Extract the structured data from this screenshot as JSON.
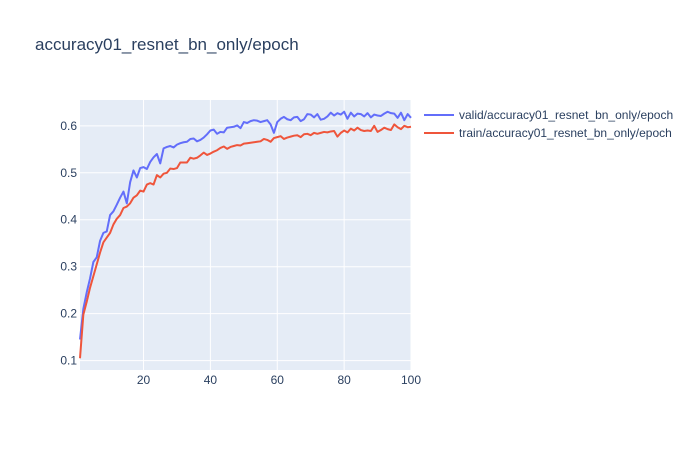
{
  "chart_data": {
    "type": "line",
    "title": "accuracy01_resnet_bn_only/epoch",
    "xlabel": "",
    "ylabel": "",
    "xlim": [
      1,
      100
    ],
    "ylim": [
      0.08,
      0.655
    ],
    "x_ticks": [
      20,
      40,
      60,
      80,
      100
    ],
    "y_ticks": [
      0.1,
      0.2,
      0.3,
      0.4,
      0.5,
      0.6
    ],
    "grid": true,
    "legend_position": "right",
    "background": "#e5ecf6",
    "series": [
      {
        "name": "valid/accuracy01_resnet_bn_only/epoch",
        "color": "#636efa",
        "x": [
          1,
          2,
          3,
          4,
          5,
          6,
          7,
          8,
          9,
          10,
          11,
          12,
          13,
          14,
          15,
          16,
          17,
          18,
          19,
          20,
          21,
          22,
          23,
          24,
          25,
          26,
          27,
          28,
          29,
          30,
          31,
          32,
          33,
          34,
          35,
          36,
          37,
          38,
          39,
          40,
          41,
          42,
          43,
          44,
          45,
          46,
          47,
          48,
          49,
          50,
          51,
          52,
          53,
          54,
          55,
          56,
          57,
          58,
          59,
          60,
          61,
          62,
          63,
          64,
          65,
          66,
          67,
          68,
          69,
          70,
          71,
          72,
          73,
          74,
          75,
          76,
          77,
          78,
          79,
          80,
          81,
          82,
          83,
          84,
          85,
          86,
          87,
          88,
          89,
          90,
          91,
          92,
          93,
          94,
          95,
          96,
          97,
          98,
          99,
          100
        ],
        "y": [
          0.145,
          0.21,
          0.245,
          0.275,
          0.31,
          0.32,
          0.355,
          0.372,
          0.375,
          0.41,
          0.418,
          0.432,
          0.447,
          0.46,
          0.435,
          0.48,
          0.505,
          0.49,
          0.51,
          0.512,
          0.508,
          0.523,
          0.533,
          0.54,
          0.52,
          0.552,
          0.555,
          0.557,
          0.554,
          0.56,
          0.563,
          0.565,
          0.566,
          0.572,
          0.573,
          0.567,
          0.57,
          0.575,
          0.582,
          0.59,
          0.592,
          0.583,
          0.587,
          0.586,
          0.596,
          0.597,
          0.598,
          0.601,
          0.595,
          0.608,
          0.606,
          0.61,
          0.612,
          0.611,
          0.608,
          0.61,
          0.612,
          0.603,
          0.585,
          0.608,
          0.615,
          0.619,
          0.614,
          0.612,
          0.618,
          0.619,
          0.61,
          0.614,
          0.625,
          0.624,
          0.618,
          0.625,
          0.613,
          0.615,
          0.62,
          0.628,
          0.622,
          0.627,
          0.624,
          0.63,
          0.615,
          0.628,
          0.62,
          0.626,
          0.625,
          0.62,
          0.627,
          0.618,
          0.624,
          0.622,
          0.621,
          0.626,
          0.63,
          0.627,
          0.626,
          0.617,
          0.628,
          0.612,
          0.625,
          0.617
        ]
      },
      {
        "name": "train/accuracy01_resnet_bn_only/epoch",
        "color": "#ef553b",
        "x": [
          1,
          2,
          3,
          4,
          5,
          6,
          7,
          8,
          9,
          10,
          11,
          12,
          13,
          14,
          15,
          16,
          17,
          18,
          19,
          20,
          21,
          22,
          23,
          24,
          25,
          26,
          27,
          28,
          29,
          30,
          31,
          32,
          33,
          34,
          35,
          36,
          37,
          38,
          39,
          40,
          41,
          42,
          43,
          44,
          45,
          46,
          47,
          48,
          49,
          50,
          51,
          52,
          53,
          54,
          55,
          56,
          57,
          58,
          59,
          60,
          61,
          62,
          63,
          64,
          65,
          66,
          67,
          68,
          69,
          70,
          71,
          72,
          73,
          74,
          75,
          76,
          77,
          78,
          79,
          80,
          81,
          82,
          83,
          84,
          85,
          86,
          87,
          88,
          89,
          90,
          91,
          92,
          93,
          94,
          95,
          96,
          97,
          98,
          99,
          100
        ],
        "y": [
          0.105,
          0.198,
          0.225,
          0.255,
          0.28,
          0.305,
          0.33,
          0.352,
          0.362,
          0.372,
          0.39,
          0.402,
          0.41,
          0.425,
          0.428,
          0.435,
          0.447,
          0.452,
          0.462,
          0.46,
          0.475,
          0.478,
          0.475,
          0.495,
          0.49,
          0.498,
          0.5,
          0.509,
          0.508,
          0.51,
          0.522,
          0.522,
          0.522,
          0.532,
          0.53,
          0.532,
          0.537,
          0.543,
          0.538,
          0.541,
          0.545,
          0.548,
          0.553,
          0.556,
          0.551,
          0.555,
          0.557,
          0.559,
          0.558,
          0.562,
          0.563,
          0.564,
          0.565,
          0.566,
          0.567,
          0.572,
          0.57,
          0.566,
          0.574,
          0.576,
          0.578,
          0.572,
          0.575,
          0.577,
          0.579,
          0.58,
          0.576,
          0.582,
          0.583,
          0.58,
          0.585,
          0.583,
          0.585,
          0.587,
          0.586,
          0.588,
          0.589,
          0.577,
          0.585,
          0.59,
          0.586,
          0.594,
          0.59,
          0.596,
          0.591,
          0.589,
          0.59,
          0.589,
          0.6,
          0.587,
          0.591,
          0.596,
          0.593,
          0.591,
          0.603,
          0.597,
          0.593,
          0.6,
          0.597,
          0.598
        ]
      }
    ]
  }
}
